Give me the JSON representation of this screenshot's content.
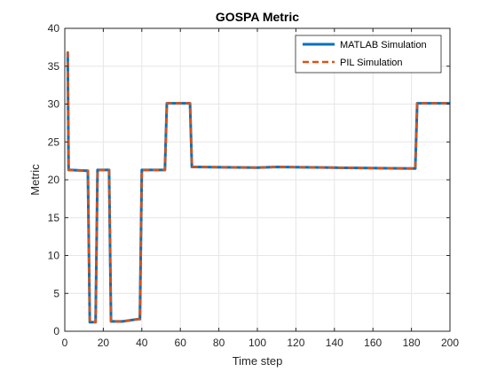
{
  "chart_data": {
    "type": "line",
    "title": "GOSPA Metric",
    "xlabel": "Time step",
    "ylabel": "Metric",
    "xlim": [
      0,
      200
    ],
    "ylim": [
      0,
      40
    ],
    "xticks": [
      0,
      20,
      40,
      60,
      80,
      100,
      120,
      140,
      160,
      180,
      200
    ],
    "yticks": [
      0,
      5,
      10,
      15,
      20,
      25,
      30,
      35,
      40
    ],
    "grid": true,
    "legend_position": "top-right",
    "series": [
      {
        "name": "MATLAB Simulation",
        "color": "#0072BD",
        "style": "solid",
        "x": [
          1,
          1.5,
          2,
          3,
          11,
          12,
          13,
          16,
          17,
          22,
          23,
          24,
          30,
          38,
          39,
          40,
          45,
          52,
          53,
          54,
          60,
          65,
          66,
          67,
          100,
          110,
          140,
          181,
          182,
          183,
          200
        ],
        "y": [
          36.8,
          36.8,
          21.3,
          21.3,
          21.2,
          21.2,
          1.2,
          1.2,
          21.3,
          21.3,
          21.3,
          1.3,
          1.3,
          1.6,
          1.6,
          21.3,
          21.3,
          21.3,
          30.1,
          30.1,
          30.1,
          30.1,
          21.7,
          21.7,
          21.6,
          21.7,
          21.6,
          21.5,
          21.5,
          30.1,
          30.1
        ]
      },
      {
        "name": "PIL Simulation",
        "color": "#D95319",
        "style": "dashed",
        "x": [
          1,
          1.5,
          2,
          3,
          11,
          12,
          13,
          16,
          17,
          22,
          23,
          24,
          30,
          38,
          39,
          40,
          45,
          52,
          53,
          54,
          60,
          65,
          66,
          67,
          100,
          110,
          140,
          181,
          182,
          183,
          200
        ],
        "y": [
          36.8,
          36.8,
          21.3,
          21.3,
          21.2,
          21.2,
          1.2,
          1.2,
          21.3,
          21.3,
          21.3,
          1.3,
          1.3,
          1.6,
          1.6,
          21.3,
          21.3,
          21.3,
          30.1,
          30.1,
          30.1,
          30.1,
          21.7,
          21.7,
          21.6,
          21.7,
          21.6,
          21.5,
          21.5,
          30.1,
          30.1
        ]
      }
    ]
  }
}
